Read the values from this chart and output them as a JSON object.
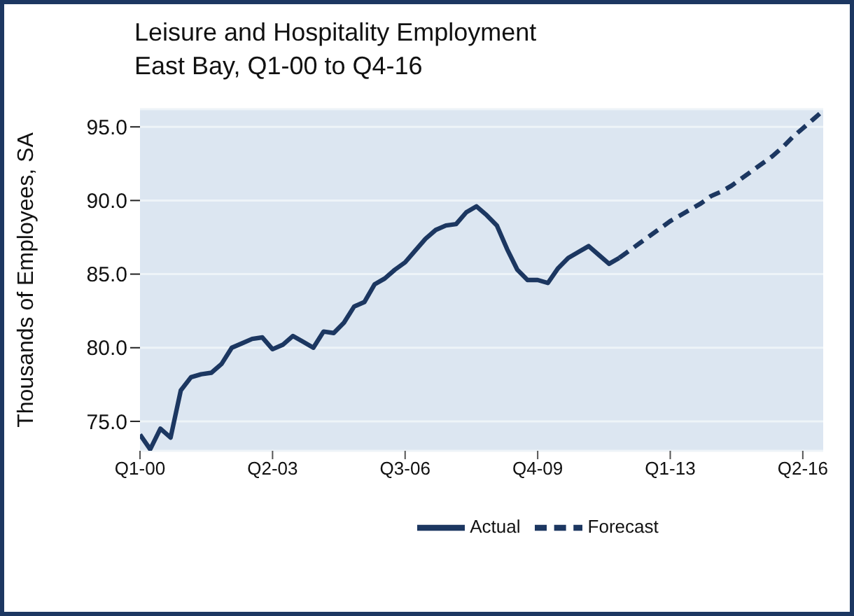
{
  "chart_data": {
    "type": "line",
    "title": "Leisure and Hospitality Employment",
    "subtitle": "East Bay, Q1-00 to Q4-16",
    "ylabel": "Thousands of Employees, SA",
    "categories": [
      "Q1-00",
      null,
      null,
      null,
      null,
      null,
      null,
      null,
      null,
      null,
      null,
      null,
      null,
      "Q2-03",
      null,
      null,
      null,
      null,
      null,
      null,
      null,
      null,
      null,
      null,
      null,
      null,
      "Q3-06",
      null,
      null,
      null,
      null,
      null,
      null,
      null,
      null,
      null,
      null,
      null,
      null,
      "Q4-09",
      null,
      null,
      null,
      null,
      null,
      null,
      null,
      null,
      null,
      null,
      null,
      null,
      "Q1-13",
      null,
      null,
      null,
      null,
      null,
      null,
      null,
      null,
      null,
      null,
      null,
      null,
      "Q2-16",
      null,
      null
    ],
    "series": [
      {
        "name": "Actual",
        "color": "#1c3761",
        "line_style": "solid",
        "values": [
          74.1,
          73.1,
          74.5,
          73.9,
          77.1,
          78.0,
          78.2,
          78.3,
          78.9,
          80.0,
          80.3,
          80.6,
          80.7,
          79.9,
          80.2,
          80.8,
          80.4,
          80.0,
          81.1,
          81.0,
          81.7,
          82.8,
          83.1,
          84.3,
          84.7,
          85.3,
          85.8,
          86.6,
          87.4,
          88.0,
          88.3,
          88.4,
          89.2,
          89.6,
          89.0,
          88.3,
          86.7,
          85.3,
          84.6,
          84.6,
          84.4,
          85.4,
          86.1,
          86.5,
          86.9,
          86.3,
          85.7,
          86.1,
          null,
          null,
          null,
          null,
          null,
          null,
          null,
          null,
          null,
          null,
          null,
          null,
          null,
          null,
          null,
          null,
          null,
          null,
          null,
          null
        ]
      },
      {
        "name": "Forecast",
        "color": "#1c3761",
        "line_style": "dashed",
        "values": [
          null,
          null,
          null,
          null,
          null,
          null,
          null,
          null,
          null,
          null,
          null,
          null,
          null,
          null,
          null,
          null,
          null,
          null,
          null,
          null,
          null,
          null,
          null,
          null,
          null,
          null,
          null,
          null,
          null,
          null,
          null,
          null,
          null,
          null,
          null,
          null,
          null,
          null,
          null,
          null,
          null,
          null,
          null,
          null,
          null,
          null,
          null,
          86.1,
          86.6,
          87.1,
          87.6,
          88.1,
          88.6,
          89.0,
          89.4,
          89.8,
          90.3,
          90.6,
          91.0,
          91.5,
          92.0,
          92.5,
          93.0,
          93.6,
          94.3,
          94.9,
          95.5,
          96.1
        ]
      }
    ],
    "ylim": [
      73,
      96.2
    ],
    "yticks": [
      {
        "value": 75,
        "label": "75.0"
      },
      {
        "value": 80,
        "label": "80.0"
      },
      {
        "value": 85,
        "label": "85.0"
      },
      {
        "value": 90,
        "label": "90.0"
      },
      {
        "value": 95,
        "label": "95.0"
      }
    ],
    "grid": "y",
    "legend": "bottom",
    "marker": "none"
  }
}
